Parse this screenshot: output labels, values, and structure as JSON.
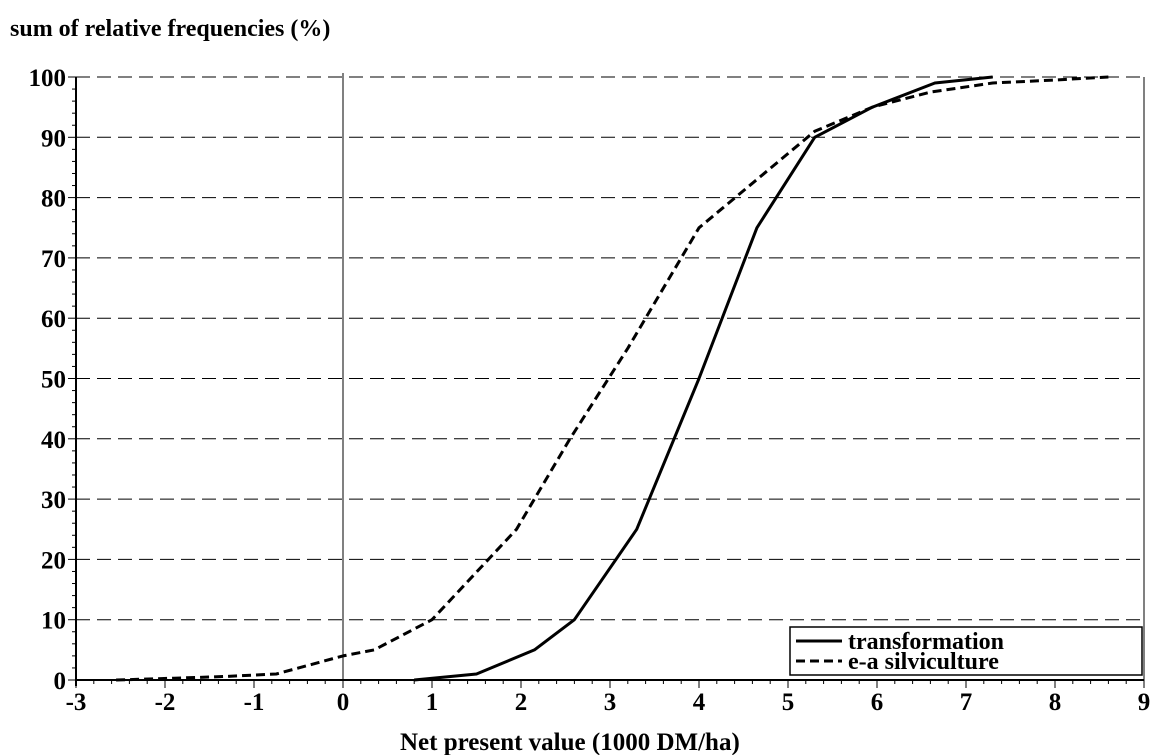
{
  "chart_data": {
    "type": "line",
    "title": "sum of relative frequencies (%)",
    "xlabel": "Net present value (1000 DM/ha)",
    "ylabel": "",
    "xlim": [
      -3,
      9
    ],
    "ylim": [
      0,
      100
    ],
    "xticks": [
      "-3",
      "-2",
      "-1",
      "0",
      "1",
      "2",
      "3",
      "4",
      "5",
      "6",
      "7",
      "8",
      "9"
    ],
    "yticks": [
      "0",
      "10",
      "20",
      "30",
      "40",
      "50",
      "60",
      "70",
      "80",
      "90",
      "100"
    ],
    "grid": "horizontal dashed",
    "legend_position": "bottom-right",
    "series": [
      {
        "name": "transformation",
        "style": "solid",
        "x": [
          0.8,
          1.5,
          2.15,
          2.6,
          3.3,
          4.0,
          4.65,
          5.3,
          5.95,
          6.65,
          7.3
        ],
        "y": [
          0,
          1,
          5,
          10,
          25,
          50,
          75,
          90,
          95,
          99,
          100
        ]
      },
      {
        "name": "e-a silviculture",
        "style": "dashed",
        "x": [
          -2.55,
          -1.9,
          -1.3,
          -0.75,
          0.0,
          0.35,
          1.0,
          1.95,
          2.55,
          3.2,
          4.0,
          4.65,
          5.3,
          5.95,
          6.6,
          7.3,
          8.0,
          8.6
        ],
        "y": [
          0,
          0.3,
          0.6,
          1,
          4,
          5,
          10,
          25,
          40,
          55,
          75,
          83,
          91,
          95,
          97.5,
          99,
          99.5,
          100
        ]
      }
    ]
  }
}
